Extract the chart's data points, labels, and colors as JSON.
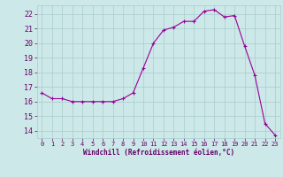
{
  "x": [
    0,
    1,
    2,
    3,
    4,
    5,
    6,
    7,
    8,
    9,
    10,
    11,
    12,
    13,
    14,
    15,
    16,
    17,
    18,
    19,
    20,
    21,
    22,
    23
  ],
  "y": [
    16.6,
    16.2,
    16.2,
    16.0,
    16.0,
    16.0,
    16.0,
    16.0,
    16.2,
    16.6,
    18.3,
    20.0,
    20.9,
    21.1,
    21.5,
    21.5,
    22.2,
    22.3,
    21.8,
    21.9,
    19.8,
    17.8,
    14.5,
    13.7
  ],
  "line_color": "#990099",
  "marker": "+",
  "marker_size": 3,
  "bg_color": "#cce8e8",
  "grid_color": "#aacccc",
  "xlabel": "Windchill (Refroidissement éolien,°C)",
  "xlabel_color": "#660066",
  "tick_color": "#660066",
  "ylim": [
    13.5,
    22.6
  ],
  "yticks": [
    14,
    15,
    16,
    17,
    18,
    19,
    20,
    21,
    22
  ],
  "xlim": [
    -0.5,
    23.5
  ],
  "xticks": [
    0,
    1,
    2,
    3,
    4,
    5,
    6,
    7,
    8,
    9,
    10,
    11,
    12,
    13,
    14,
    15,
    16,
    17,
    18,
    19,
    20,
    21,
    22,
    23
  ]
}
